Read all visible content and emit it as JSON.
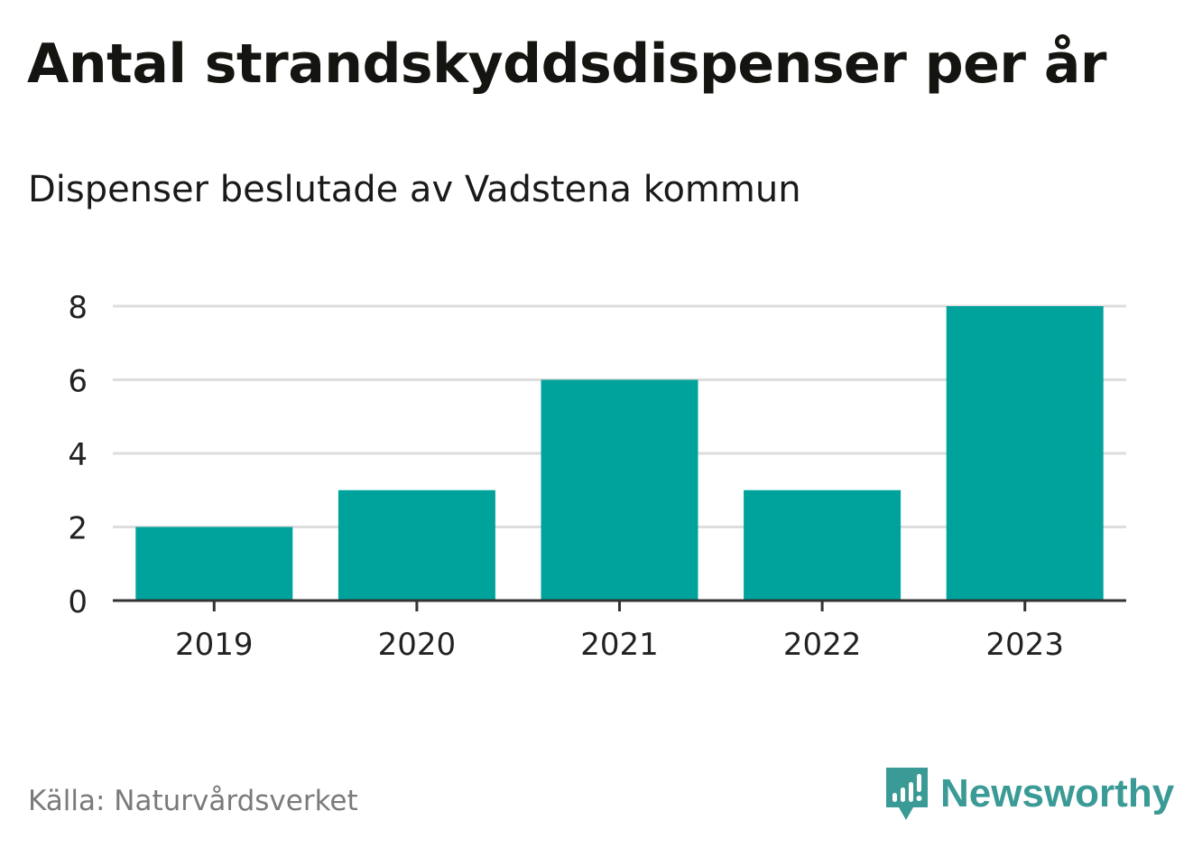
{
  "header": {
    "title": "Antal strandskyddsdispenser per år",
    "subtitle": "Dispenser beslutade av Vadstena kommun"
  },
  "footer": {
    "source": "Källa: Naturvårdsverket",
    "brand": "Newsworthy",
    "brand_icon": "newsworthy-logo-icon"
  },
  "colors": {
    "bar": "#00a39b",
    "grid": "#dddddd",
    "axis": "#333333",
    "brand": "#3a9a96"
  },
  "chart_data": {
    "type": "bar",
    "title": "Antal strandskyddsdispenser per år",
    "subtitle": "Dispenser beslutade av Vadstena kommun",
    "categories": [
      "2019",
      "2020",
      "2021",
      "2022",
      "2023"
    ],
    "values": [
      2,
      3,
      6,
      3,
      8
    ],
    "xlabel": "",
    "ylabel": "",
    "ylim": [
      0,
      8
    ],
    "yticks": [
      0,
      2,
      4,
      6,
      8
    ],
    "grid": true,
    "legend": "none"
  }
}
